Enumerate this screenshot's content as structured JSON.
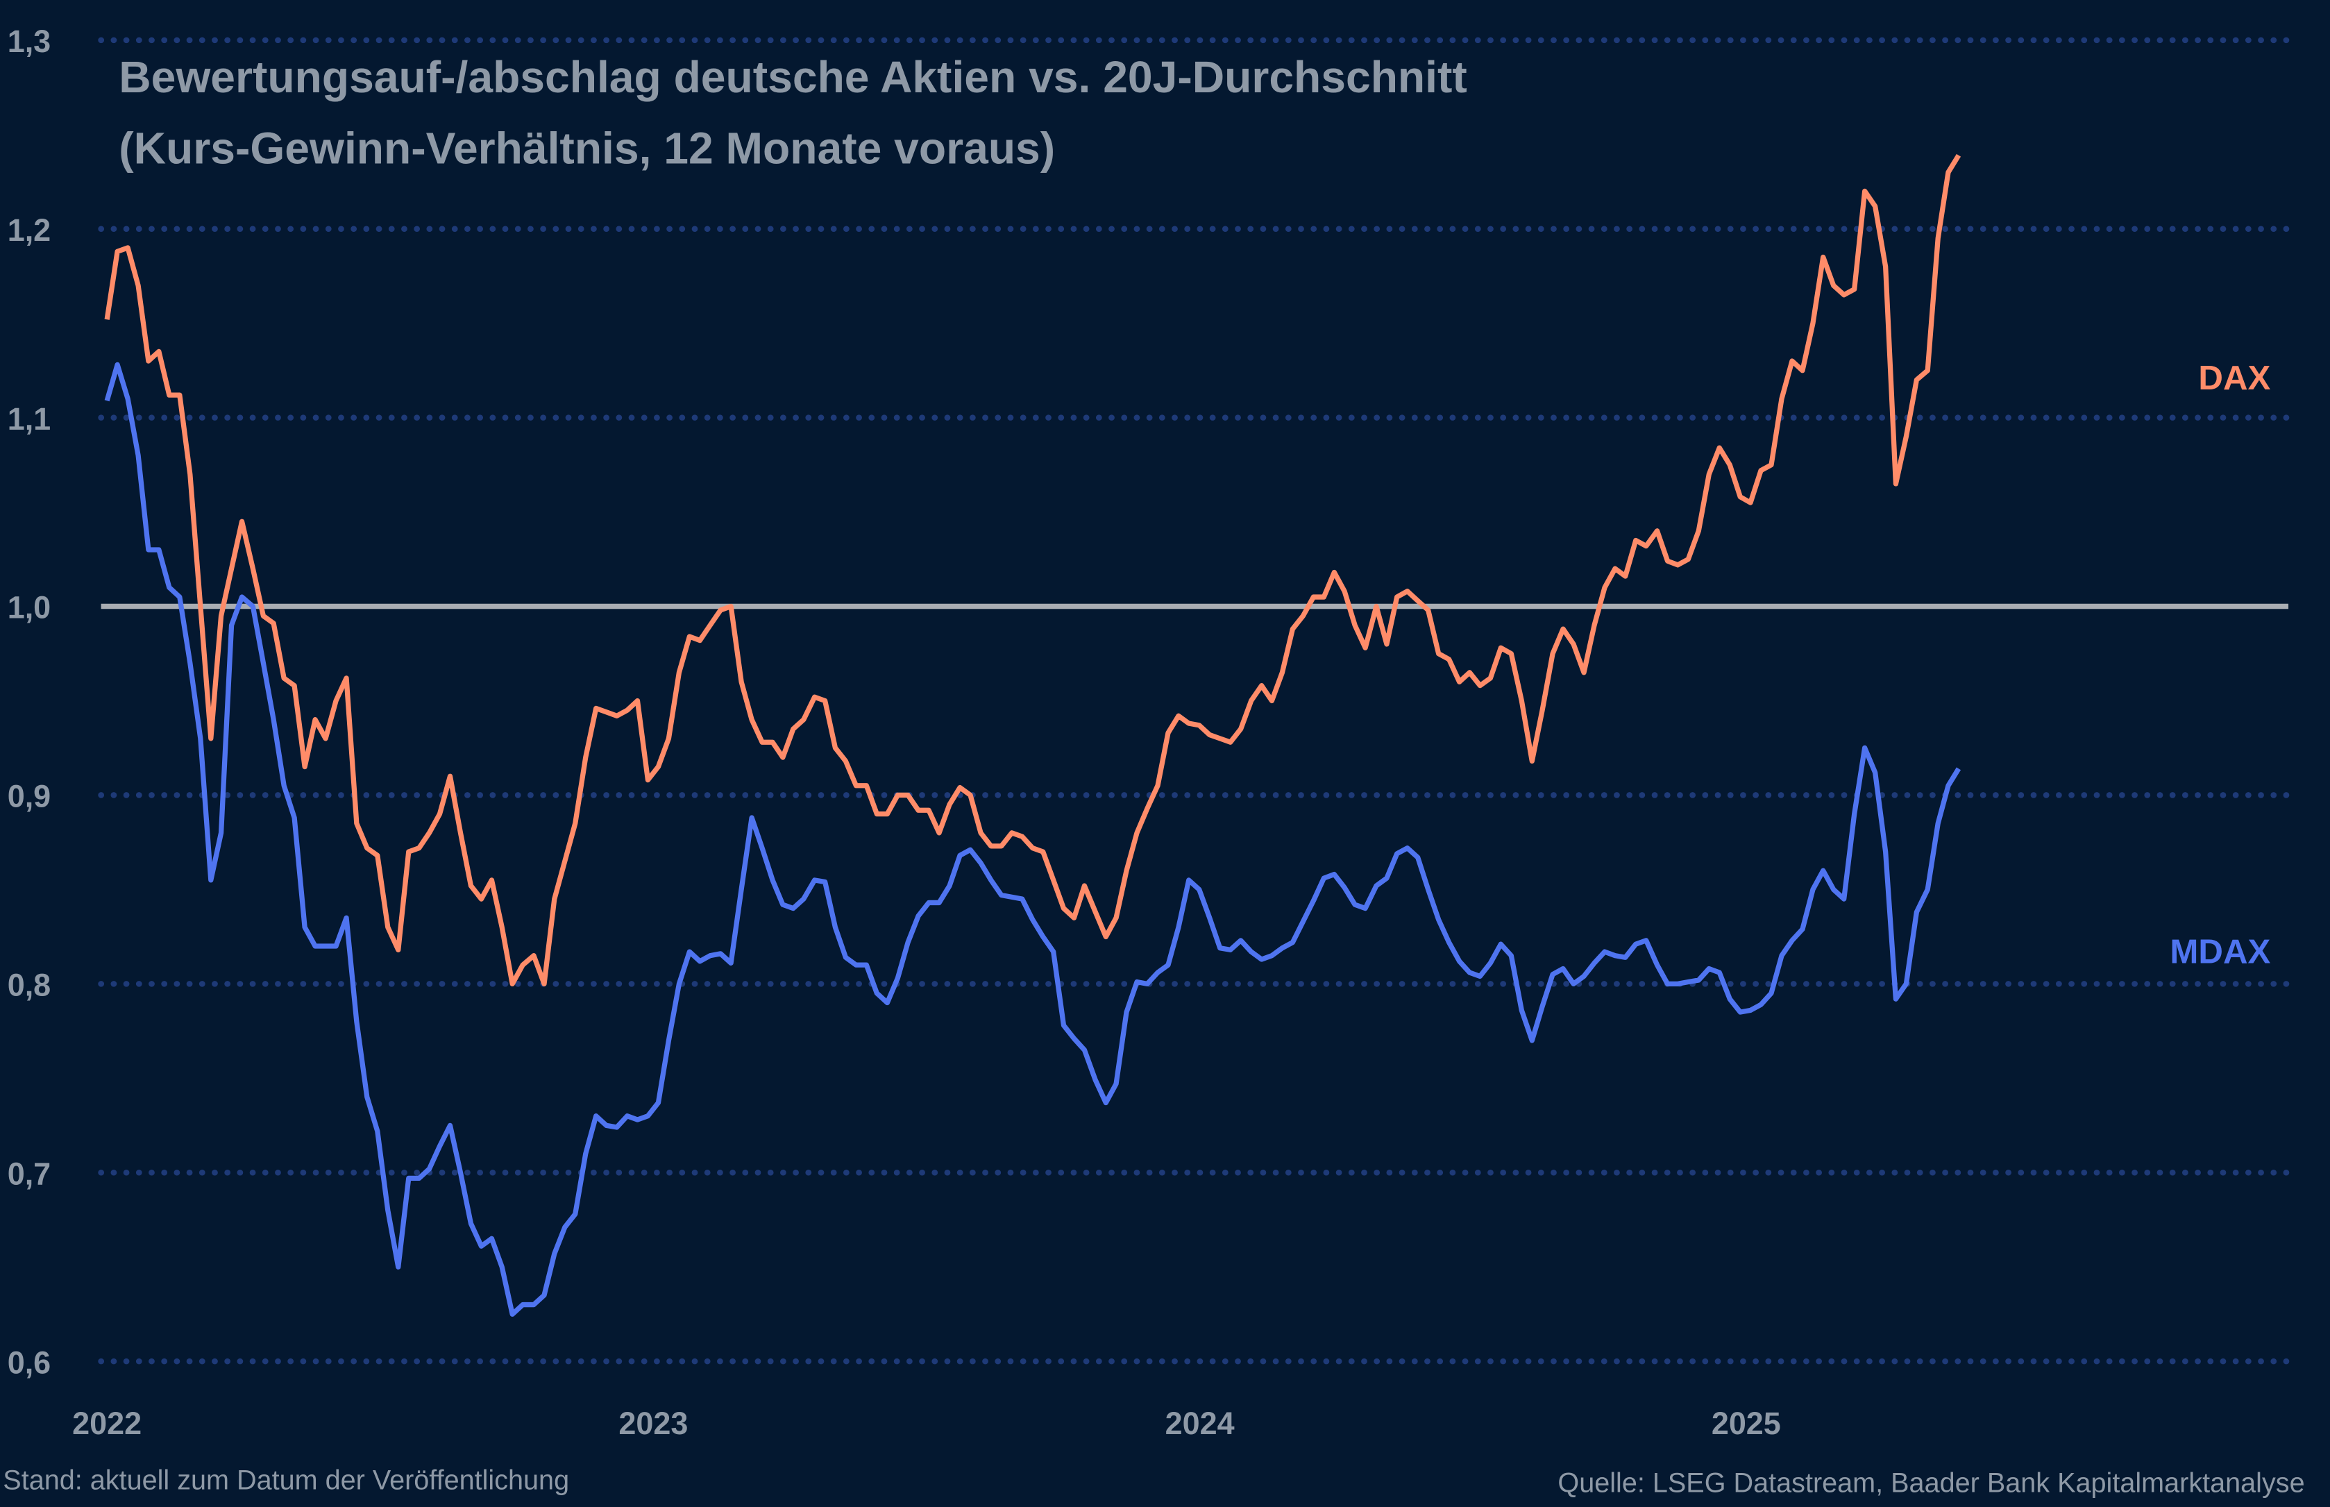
{
  "chart_data": {
    "type": "line",
    "title": "Bewertungsauf-/abschlag deutsche Aktien vs. 20J-Durchschnitt",
    "subtitle": "(Kurs-Gewinn-Verhältnis, 12 Monate voraus)",
    "xlabel": "",
    "ylabel": "",
    "xlim": [
      2022,
      2025.9
    ],
    "ylim": [
      0.6,
      1.3
    ],
    "x_ticks": [
      "2022",
      "2023",
      "2024",
      "2025"
    ],
    "x_tick_values": [
      2022,
      2023,
      2024,
      2025
    ],
    "y_ticks": [
      "1,3",
      "1,2",
      "1,1",
      "1,0",
      "0,9",
      "0,8",
      "0,7",
      "0,6"
    ],
    "y_tick_values": [
      1.3,
      1.2,
      1.1,
      1.0,
      0.9,
      0.8,
      0.7,
      0.6
    ],
    "grid": "horizontal dotted",
    "reference_line": 1.0,
    "reference_color": "#a9adb3",
    "grid_color": "#1e3a78",
    "background": "#041830",
    "legend": "inline labels right",
    "x": [
      2022.0,
      2022.019,
      2022.038,
      2022.057,
      2022.076,
      2022.095,
      2022.114,
      2022.133,
      2022.152,
      2022.171,
      2022.19,
      2022.209,
      2022.228,
      2022.247,
      2022.267,
      2022.286,
      2022.305,
      2022.324,
      2022.343,
      2022.362,
      2022.381,
      2022.4,
      2022.419,
      2022.438,
      2022.457,
      2022.476,
      2022.495,
      2022.514,
      2022.533,
      2022.552,
      2022.571,
      2022.59,
      2022.609,
      2022.628,
      2022.647,
      2022.666,
      2022.685,
      2022.704,
      2022.723,
      2022.742,
      2022.761,
      2022.781,
      2022.8,
      2022.819,
      2022.838,
      2022.857,
      2022.876,
      2022.895,
      2022.914,
      2022.933,
      2022.952,
      2022.971,
      2022.99,
      2023.009,
      2023.028,
      2023.047,
      2023.066,
      2023.085,
      2023.104,
      2023.123,
      2023.142,
      2023.161,
      2023.18,
      2023.199,
      2023.218,
      2023.237,
      2023.256,
      2023.275,
      2023.295,
      2023.314,
      2023.333,
      2023.352,
      2023.371,
      2023.39,
      2023.409,
      2023.428,
      2023.447,
      2023.466,
      2023.485,
      2023.504,
      2023.523,
      2023.542,
      2023.561,
      2023.58,
      2023.599,
      2023.618,
      2023.637,
      2023.656,
      2023.675,
      2023.694,
      2023.713,
      2023.732,
      2023.751,
      2023.77,
      2023.789,
      2023.809,
      2023.828,
      2023.847,
      2023.866,
      2023.885,
      2023.904,
      2023.923,
      2023.942,
      2023.961,
      2023.98,
      2023.999,
      2024.018,
      2024.037,
      2024.056,
      2024.075,
      2024.094,
      2024.113,
      2024.132,
      2024.151,
      2024.17,
      2024.189,
      2024.208,
      2024.227,
      2024.246,
      2024.265,
      2024.284,
      2024.303,
      2024.323,
      2024.342,
      2024.361,
      2024.38,
      2024.399,
      2024.418,
      2024.437,
      2024.456,
      2024.475,
      2024.494,
      2024.513,
      2024.532,
      2024.551,
      2024.57,
      2024.589,
      2024.608,
      2024.627,
      2024.646,
      2024.665,
      2024.684,
      2024.703,
      2024.722,
      2024.741,
      2024.76,
      2024.779,
      2024.798,
      2024.817,
      2024.837,
      2024.856,
      2024.875,
      2024.894,
      2024.913,
      2024.932,
      2024.951,
      2024.97,
      2024.989,
      2025.008,
      2025.027,
      2025.046,
      2025.065,
      2025.084,
      2025.103,
      2025.122,
      2025.141,
      2025.16,
      2025.179,
      2025.198,
      2025.217,
      2025.236,
      2025.255,
      2025.274,
      2025.293,
      2025.312,
      2025.332,
      2025.351,
      2025.37,
      2025.389
    ],
    "series": [
      {
        "name": "DAX",
        "color": "#ff8c69",
        "values": [
          1.152,
          1.188,
          1.19,
          1.17,
          1.13,
          1.135,
          1.112,
          1.112,
          1.07,
          1.0,
          0.93,
          0.995,
          1.02,
          1.045,
          1.02,
          0.995,
          0.991,
          0.962,
          0.958,
          0.915,
          0.94,
          0.93,
          0.95,
          0.962,
          0.885,
          0.872,
          0.868,
          0.83,
          0.818,
          0.87,
          0.872,
          0.88,
          0.89,
          0.91,
          0.88,
          0.852,
          0.845,
          0.855,
          0.83,
          0.8,
          0.81,
          0.815,
          0.8,
          0.845,
          0.865,
          0.885,
          0.92,
          0.946,
          0.944,
          0.942,
          0.945,
          0.95,
          0.908,
          0.915,
          0.93,
          0.965,
          0.984,
          0.982,
          0.99,
          0.998,
          1.0,
          0.96,
          0.94,
          0.928,
          0.928,
          0.92,
          0.935,
          0.94,
          0.952,
          0.95,
          0.925,
          0.918,
          0.905,
          0.905,
          0.89,
          0.89,
          0.9,
          0.9,
          0.892,
          0.892,
          0.88,
          0.895,
          0.904,
          0.9,
          0.88,
          0.873,
          0.873,
          0.88,
          0.878,
          0.872,
          0.87,
          0.855,
          0.84,
          0.835,
          0.852,
          0.838,
          0.825,
          0.835,
          0.86,
          0.88,
          0.893,
          0.905,
          0.933,
          0.942,
          0.938,
          0.937,
          0.932,
          0.93,
          0.928,
          0.935,
          0.95,
          0.958,
          0.95,
          0.965,
          0.988,
          0.995,
          1.005,
          1.005,
          1.018,
          1.008,
          0.99,
          0.978,
          1.0,
          0.98,
          1.005,
          1.008,
          1.003,
          0.998,
          0.975,
          0.972,
          0.96,
          0.965,
          0.958,
          0.962,
          0.978,
          0.975,
          0.95,
          0.918,
          0.945,
          0.975,
          0.988,
          0.98,
          0.965,
          0.99,
          1.01,
          1.02,
          1.016,
          1.035,
          1.032,
          1.04,
          1.024,
          1.022,
          1.025,
          1.04,
          1.07,
          1.084,
          1.075,
          1.058,
          1.055,
          1.072,
          1.075,
          1.11,
          1.13,
          1.125,
          1.15,
          1.185,
          1.17,
          1.165,
          1.168,
          1.22,
          1.212,
          1.18,
          1.065,
          1.09,
          1.12,
          1.125,
          1.195,
          1.23,
          1.239
        ]
      },
      {
        "name": "MDAX",
        "color": "#4f74f0",
        "values": [
          1.109,
          1.128,
          1.11,
          1.08,
          1.03,
          1.03,
          1.01,
          1.005,
          0.97,
          0.93,
          0.855,
          0.88,
          0.99,
          1.005,
          1.0,
          0.97,
          0.94,
          0.905,
          0.888,
          0.83,
          0.82,
          0.82,
          0.82,
          0.835,
          0.78,
          0.74,
          0.722,
          0.68,
          0.65,
          0.697,
          0.697,
          0.702,
          0.714,
          0.725,
          0.7,
          0.673,
          0.661,
          0.665,
          0.65,
          0.625,
          0.63,
          0.63,
          0.635,
          0.657,
          0.671,
          0.678,
          0.71,
          0.73,
          0.725,
          0.724,
          0.73,
          0.728,
          0.73,
          0.737,
          0.77,
          0.8,
          0.817,
          0.812,
          0.815,
          0.816,
          0.811,
          0.85,
          0.888,
          0.872,
          0.855,
          0.842,
          0.84,
          0.845,
          0.855,
          0.854,
          0.83,
          0.814,
          0.81,
          0.81,
          0.795,
          0.79,
          0.803,
          0.822,
          0.836,
          0.843,
          0.843,
          0.852,
          0.868,
          0.871,
          0.864,
          0.855,
          0.847,
          0.846,
          0.845,
          0.834,
          0.825,
          0.817,
          0.778,
          0.771,
          0.765,
          0.749,
          0.737,
          0.747,
          0.785,
          0.801,
          0.8,
          0.806,
          0.81,
          0.83,
          0.855,
          0.85,
          0.835,
          0.819,
          0.818,
          0.823,
          0.817,
          0.813,
          0.815,
          0.819,
          0.822,
          0.833,
          0.844,
          0.856,
          0.858,
          0.851,
          0.842,
          0.84,
          0.852,
          0.856,
          0.869,
          0.872,
          0.867,
          0.85,
          0.834,
          0.822,
          0.812,
          0.806,
          0.804,
          0.811,
          0.821,
          0.815,
          0.786,
          0.77,
          0.788,
          0.805,
          0.808,
          0.8,
          0.804,
          0.811,
          0.817,
          0.815,
          0.814,
          0.821,
          0.823,
          0.81,
          0.8,
          0.8,
          0.801,
          0.802,
          0.808,
          0.806,
          0.792,
          0.785,
          0.786,
          0.789,
          0.795,
          0.815,
          0.823,
          0.829,
          0.85,
          0.86,
          0.85,
          0.845,
          0.89,
          0.925,
          0.912,
          0.87,
          0.792,
          0.8,
          0.838,
          0.85,
          0.885,
          0.905,
          0.914
        ]
      }
    ]
  },
  "footer": {
    "left": "Stand: aktuell zum Datum der Veröffentlichung",
    "right": "Quelle: LSEG Datastream, Baader Bank Kapitalmarktanalyse"
  }
}
